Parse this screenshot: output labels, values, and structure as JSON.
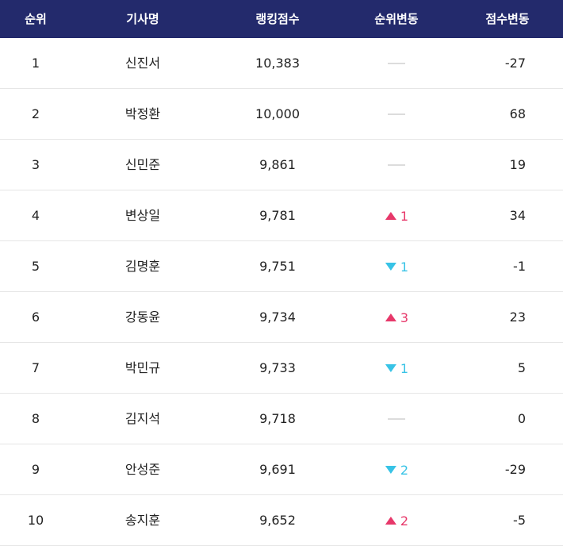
{
  "header": [
    "순위",
    "기사명",
    "랭킹점수",
    "순위변동",
    "점수변동"
  ],
  "rows": [
    {
      "rank": "1",
      "name": "신진서",
      "score": "10,383",
      "rank_change": {
        "dir": "none"
      },
      "score_change": "-27"
    },
    {
      "rank": "2",
      "name": "박정환",
      "score": "10,000",
      "rank_change": {
        "dir": "none"
      },
      "score_change": "68"
    },
    {
      "rank": "3",
      "name": "신민준",
      "score": "9,861",
      "rank_change": {
        "dir": "none"
      },
      "score_change": "19"
    },
    {
      "rank": "4",
      "name": "변상일",
      "score": "9,781",
      "rank_change": {
        "dir": "up",
        "value": "1"
      },
      "score_change": "34"
    },
    {
      "rank": "5",
      "name": "김명훈",
      "score": "9,751",
      "rank_change": {
        "dir": "down",
        "value": "1"
      },
      "score_change": "-1"
    },
    {
      "rank": "6",
      "name": "강동윤",
      "score": "9,734",
      "rank_change": {
        "dir": "up",
        "value": "3"
      },
      "score_change": "23"
    },
    {
      "rank": "7",
      "name": "박민규",
      "score": "9,733",
      "rank_change": {
        "dir": "down",
        "value": "1"
      },
      "score_change": "5"
    },
    {
      "rank": "8",
      "name": "김지석",
      "score": "9,718",
      "rank_change": {
        "dir": "none"
      },
      "score_change": "0"
    },
    {
      "rank": "9",
      "name": "안성준",
      "score": "9,691",
      "rank_change": {
        "dir": "down",
        "value": "2"
      },
      "score_change": "-29"
    },
    {
      "rank": "10",
      "name": "송지훈",
      "score": "9,652",
      "rank_change": {
        "dir": "up",
        "value": "2"
      },
      "score_change": "-5"
    }
  ]
}
